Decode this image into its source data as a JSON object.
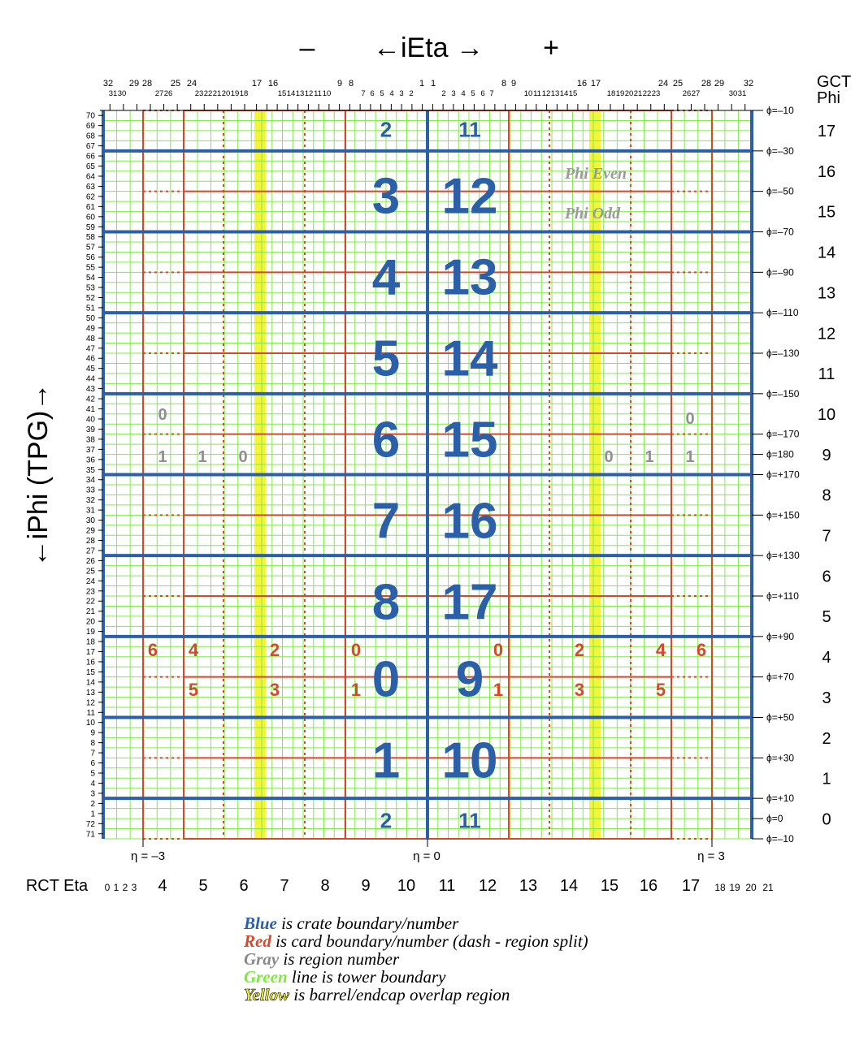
{
  "header": {
    "minus": "–",
    "ieta": "←iEta →",
    "plus": "+",
    "gct_phi_line1": "GCT",
    "gct_phi_line2": "Phi"
  },
  "left_axis_label": "←iPhi (TPG)→",
  "rct_eta_label": "RCT Eta",
  "rct_eta": [
    "0",
    "1",
    "2",
    "3",
    "4",
    "5",
    "6",
    "7",
    "8",
    "9",
    "10",
    "11",
    "12",
    "13",
    "14",
    "15",
    "16",
    "17",
    "18",
    "19",
    "20",
    "21"
  ],
  "eta_markers": {
    "left": "η = –3",
    "center": "η = 0",
    "right": "η = 3"
  },
  "ieta_ticks_top_row": [
    "32",
    "29",
    "28",
    "25",
    "24",
    "17",
    "16",
    "9",
    "8",
    "1",
    "1",
    "8",
    "9",
    "16",
    "17",
    "24",
    "25",
    "28",
    "29",
    "32"
  ],
  "ieta_ticks_second_row_left": [
    "31",
    "30",
    "27",
    "26",
    "23",
    "22",
    "21",
    "20",
    "19",
    "18",
    "15",
    "14",
    "13",
    "12",
    "11",
    "10",
    "7",
    "6",
    "5",
    "4",
    "3",
    "2"
  ],
  "ieta_ticks_second_row_right": [
    "2",
    "3",
    "4",
    "5",
    "6",
    "7",
    "10",
    "11",
    "12",
    "13",
    "14",
    "15",
    "18",
    "19",
    "20",
    "21",
    "22",
    "23",
    "26",
    "27",
    "30",
    "31"
  ],
  "iphi_labels": [
    "70",
    "69",
    "68",
    "67",
    "66",
    "65",
    "64",
    "63",
    "62",
    "61",
    "60",
    "59",
    "58",
    "57",
    "56",
    "55",
    "54",
    "53",
    "52",
    "51",
    "50",
    "49",
    "48",
    "47",
    "46",
    "45",
    "44",
    "43",
    "42",
    "41",
    "40",
    "39",
    "38",
    "37",
    "36",
    "35",
    "34",
    "33",
    "32",
    "31",
    "30",
    "29",
    "28",
    "27",
    "26",
    "25",
    "24",
    "23",
    "22",
    "21",
    "20",
    "19",
    "18",
    "17",
    "16",
    "15",
    "14",
    "13",
    "12",
    "11",
    "10",
    "9",
    "8",
    "7",
    "6",
    "5",
    "4",
    "3",
    "2",
    "1",
    "72",
    "71"
  ],
  "phi_deg_labels": [
    "ϕ=–10",
    "ϕ=–30",
    "ϕ=–50",
    "ϕ=–70",
    "ϕ=–90",
    "ϕ=–110",
    "ϕ=–130",
    "ϕ=–150",
    "ϕ=–170",
    "ϕ=180",
    "ϕ=+170",
    "ϕ=+150",
    "ϕ=+130",
    "ϕ=+110",
    "ϕ=+90",
    "ϕ=+70",
    "ϕ=+50",
    "ϕ=+30",
    "ϕ=+10",
    "ϕ=0",
    "ϕ=–10"
  ],
  "gct_phi": [
    "17",
    "16",
    "15",
    "14",
    "13",
    "12",
    "11",
    "10",
    "9",
    "8",
    "7",
    "6",
    "5",
    "4",
    "3",
    "2",
    "1",
    "0"
  ],
  "crates_left": [
    "2",
    "3",
    "4",
    "5",
    "6",
    "7",
    "8",
    "0",
    "1",
    "2"
  ],
  "crates_right": [
    "11",
    "12",
    "13",
    "14",
    "15",
    "16",
    "17",
    "9",
    "10",
    "11"
  ],
  "phi_even": "Phi Even",
  "phi_odd": "Phi Odd",
  "region_numbers": {
    "left_top_zero": "0",
    "left_row": [
      "1",
      "1",
      "0"
    ],
    "right_row": [
      "0",
      "1",
      "1"
    ],
    "right_top_zero": "0"
  },
  "card_numbers": {
    "top_row_left": [
      "6",
      "4",
      "2",
      "0"
    ],
    "top_row_right": [
      "0",
      "2",
      "4",
      "6"
    ],
    "bottom_row_left": [
      "5",
      "3",
      "1"
    ],
    "bottom_row_right": [
      "1",
      "3",
      "5"
    ]
  },
  "legend": [
    {
      "key": "Blue",
      "rest": " is crate boundary/number",
      "color": "#2b5fa8"
    },
    {
      "key": "Red",
      "rest": " is card boundary/number (dash - region split)",
      "color": "#d2492b"
    },
    {
      "key": "Gray",
      "rest": " is region number",
      "color": "#8a8a8a"
    },
    {
      "key": "Green",
      "rest": " line is tower boundary",
      "color": "#7cec3c"
    },
    {
      "key": "Yellow",
      "rest": " is barrel/endcap overlap region",
      "color": "#f2f23a"
    }
  ],
  "colors": {
    "blue": "#2b5fa8",
    "red": "#d2492b",
    "gray": "#8f8f8f",
    "green": "#7fec4a",
    "yellow": "#f4f43a"
  }
}
